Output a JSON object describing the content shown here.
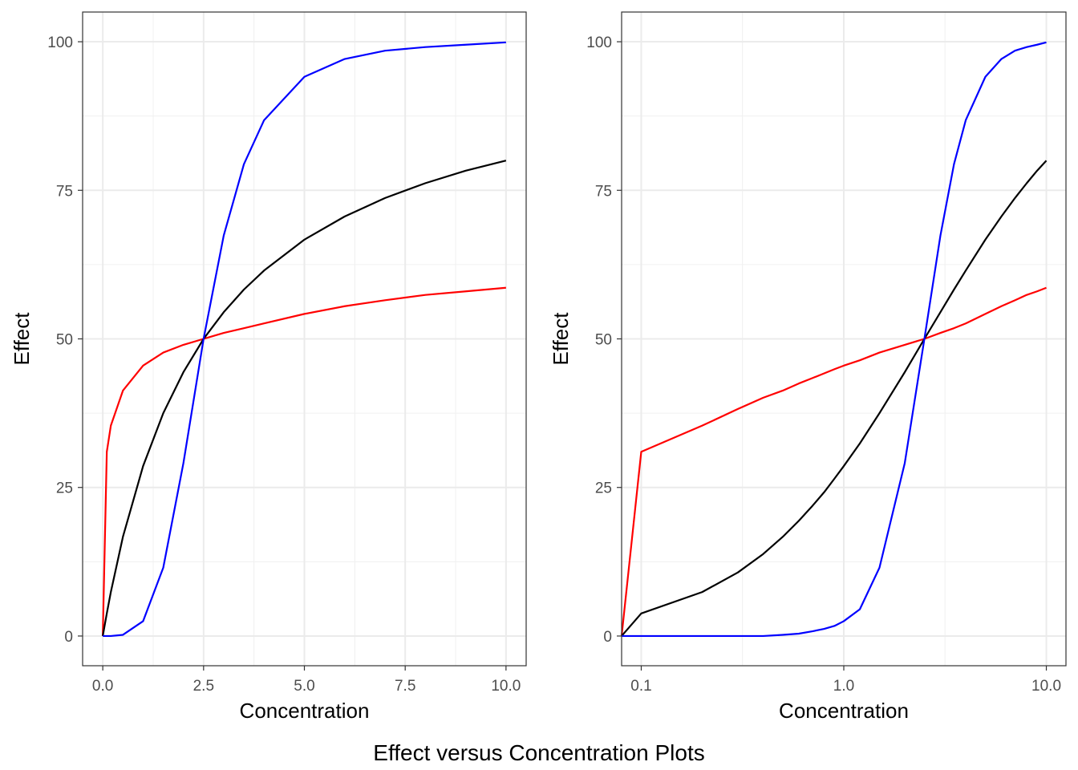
{
  "caption": "Effect versus Concentration Plots",
  "colors": {
    "red": "#ff0000",
    "black": "#000000",
    "blue": "#0000ff"
  },
  "chart_data": [
    {
      "type": "line",
      "xlabel": "Concentration",
      "ylabel": "Effect",
      "xscale": "linear",
      "xlim": [
        -0.5,
        10.5
      ],
      "ylim": [
        -5,
        105
      ],
      "x_ticks": [
        0,
        2.5,
        5,
        7.5,
        10
      ],
      "x_tick_labels": [
        "0.0",
        "2.5",
        "5.0",
        "7.5",
        "10.0"
      ],
      "x_minor_ticks": [
        1.25,
        3.75,
        6.25,
        8.75
      ],
      "y_ticks": [
        0,
        25,
        50,
        75,
        100
      ],
      "y_tick_labels": [
        "0",
        "25",
        "50",
        "75",
        "100"
      ],
      "y_minor_ticks": [
        12.5,
        37.5,
        62.5,
        87.5
      ],
      "grid": true,
      "x": [
        0,
        0.1,
        0.2,
        0.5,
        1,
        1.5,
        2,
        2.5,
        3,
        3.5,
        4,
        5,
        6,
        7,
        8,
        9,
        10
      ],
      "series": [
        {
          "color": "red",
          "values": [
            0,
            31.0,
            35.4,
            41.3,
            45.5,
            47.7,
            49.0,
            50.0,
            51.0,
            51.8,
            52.6,
            54.2,
            55.5,
            56.5,
            57.4,
            58.0,
            58.6
          ]
        },
        {
          "color": "black",
          "values": [
            0,
            3.8,
            7.4,
            16.7,
            28.6,
            37.5,
            44.4,
            50.0,
            54.5,
            58.3,
            61.5,
            66.7,
            70.6,
            73.7,
            76.2,
            78.3,
            80.0
          ]
        },
        {
          "color": "blue",
          "values": [
            0,
            0.0,
            0.0,
            0.2,
            2.5,
            11.5,
            29.1,
            50.0,
            67.4,
            79.4,
            86.8,
            94.1,
            97.1,
            98.5,
            99.1,
            99.5,
            99.9
          ]
        }
      ]
    },
    {
      "type": "line",
      "xlabel": "Concentration",
      "ylabel": "Effect",
      "xscale": "log10",
      "xlim": [
        0.08,
        12.5
      ],
      "ylim": [
        -5,
        105
      ],
      "x_ticks": [
        0.1,
        1,
        10
      ],
      "x_tick_labels": [
        "0.1",
        "1.0",
        "10.0"
      ],
      "x_minor_ticks": [
        0.316,
        3.16
      ],
      "y_ticks": [
        0,
        25,
        50,
        75,
        100
      ],
      "y_tick_labels": [
        "0",
        "25",
        "50",
        "75",
        "100"
      ],
      "y_minor_ticks": [
        12.5,
        37.5,
        62.5,
        87.5
      ],
      "grid": true,
      "x": [
        0.08,
        0.1,
        0.2,
        0.3,
        0.4,
        0.5,
        0.6,
        0.7,
        0.8,
        0.9,
        1,
        1.2,
        1.5,
        2,
        2.5,
        3,
        3.5,
        4,
        5,
        6,
        7,
        8,
        9,
        10
      ],
      "series": [
        {
          "color": "red",
          "values": [
            0,
            31.0,
            35.4,
            38.2,
            40.1,
            41.3,
            42.5,
            43.4,
            44.2,
            44.9,
            45.5,
            46.4,
            47.7,
            49.0,
            50.0,
            51.0,
            51.8,
            52.6,
            54.2,
            55.5,
            56.5,
            57.4,
            58.0,
            58.6
          ]
        },
        {
          "color": "black",
          "values": [
            0,
            3.8,
            7.4,
            10.7,
            13.8,
            16.7,
            19.4,
            21.9,
            24.2,
            26.5,
            28.6,
            32.4,
            37.5,
            44.4,
            50.0,
            54.5,
            58.3,
            61.5,
            66.7,
            70.6,
            73.7,
            76.2,
            78.3,
            80.0
          ]
        },
        {
          "color": "blue",
          "values": [
            0,
            0.0,
            0.0,
            0.0,
            0.0,
            0.2,
            0.4,
            0.8,
            1.2,
            1.7,
            2.5,
            4.5,
            11.5,
            29.1,
            50.0,
            67.4,
            79.4,
            86.8,
            94.1,
            97.1,
            98.5,
            99.1,
            99.5,
            99.9
          ]
        }
      ]
    }
  ]
}
